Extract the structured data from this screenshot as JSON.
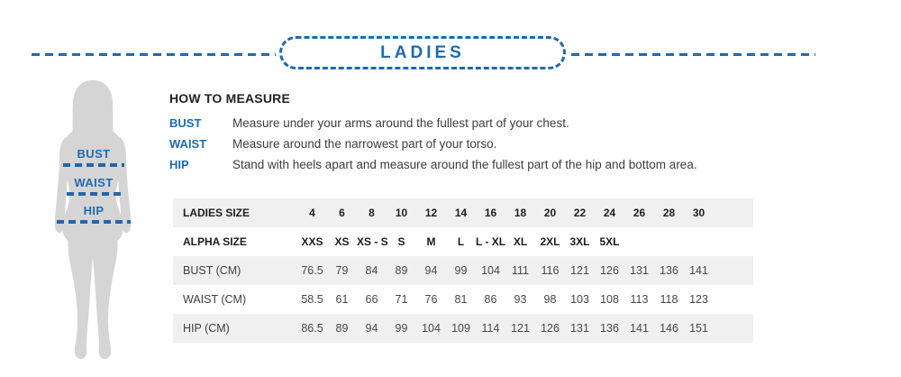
{
  "header": {
    "title": "LADIES"
  },
  "colors": {
    "accent_blue": "#1d6bb2",
    "row_gray": "#f0f0f0",
    "silhouette_gray": "#d5d5d5"
  },
  "figure": {
    "labels": [
      "BUST",
      "WAIST",
      "HIP"
    ]
  },
  "how_to_measure": {
    "title": "HOW TO MEASURE",
    "items": [
      {
        "label": "BUST",
        "text": "Measure under your arms around the fullest part of your chest."
      },
      {
        "label": "WAIST",
        "text": "Measure around the narrowest part of your torso."
      },
      {
        "label": "HIP",
        "text": "Stand with heels apart and measure around the fullest part of the hip and bottom area."
      }
    ]
  },
  "size_table": {
    "rows": [
      {
        "label": "LADIES SIZE",
        "bold": true,
        "values": [
          "4",
          "6",
          "8",
          "10",
          "12",
          "14",
          "16",
          "18",
          "20",
          "22",
          "24",
          "26",
          "28",
          "30"
        ]
      },
      {
        "label": "ALPHA SIZE",
        "bold": true,
        "values": [
          "XXS",
          "XS",
          "XS - S",
          "S",
          "M",
          "L",
          "L - XL",
          "XL",
          "2XL",
          "3XL",
          "5XL",
          "",
          "",
          ""
        ]
      },
      {
        "label": "BUST (CM)",
        "bold": false,
        "values": [
          "76.5",
          "79",
          "84",
          "89",
          "94",
          "99",
          "104",
          "111",
          "116",
          "121",
          "126",
          "131",
          "136",
          "141"
        ]
      },
      {
        "label": "WAIST (CM)",
        "bold": false,
        "values": [
          "58.5",
          "61",
          "66",
          "71",
          "76",
          "81",
          "86",
          "93",
          "98",
          "103",
          "108",
          "113",
          "118",
          "123"
        ]
      },
      {
        "label": "HIP (CM)",
        "bold": false,
        "values": [
          "86.5",
          "89",
          "94",
          "99",
          "104",
          "109",
          "114",
          "121",
          "126",
          "131",
          "136",
          "141",
          "146",
          "151"
        ]
      }
    ]
  }
}
